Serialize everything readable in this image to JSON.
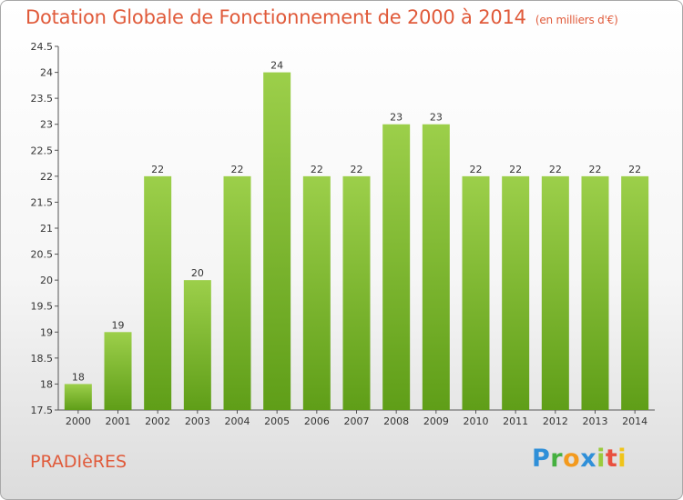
{
  "title": "Dotation Globale de Fonctionnement de 2000 à 2014",
  "subtitle": "(en milliers d'€)",
  "commune": "PRADIèRES",
  "logo": {
    "letters": [
      "P",
      "r",
      "o",
      "x",
      "i",
      "t",
      "i"
    ]
  },
  "chart_data": {
    "type": "bar",
    "title": "Dotation Globale de Fonctionnement de 2000 à 2014",
    "subtitle": "(en milliers d'€)",
    "categories": [
      "2000",
      "2001",
      "2002",
      "2003",
      "2004",
      "2005",
      "2006",
      "2007",
      "2008",
      "2009",
      "2010",
      "2011",
      "2012",
      "2013",
      "2014"
    ],
    "values": [
      18,
      19,
      22,
      20,
      22,
      24,
      22,
      22,
      23,
      23,
      22,
      22,
      22,
      22,
      22
    ],
    "value_labels": [
      "18",
      "19",
      "22",
      "20",
      "22",
      "24",
      "22",
      "22",
      "23",
      "23",
      "22",
      "22",
      "22",
      "22",
      "22"
    ],
    "ylim": [
      17.5,
      24.5
    ],
    "yticks": [
      "17.5",
      "18",
      "18.5",
      "19",
      "19.5",
      "20",
      "20.5",
      "21",
      "21.5",
      "22",
      "22.5",
      "23",
      "23.5",
      "24",
      "24.5"
    ],
    "grid": false,
    "legend": "none",
    "bar_color_top": "#9ccf4a",
    "bar_color_bottom": "#5f9e18"
  }
}
